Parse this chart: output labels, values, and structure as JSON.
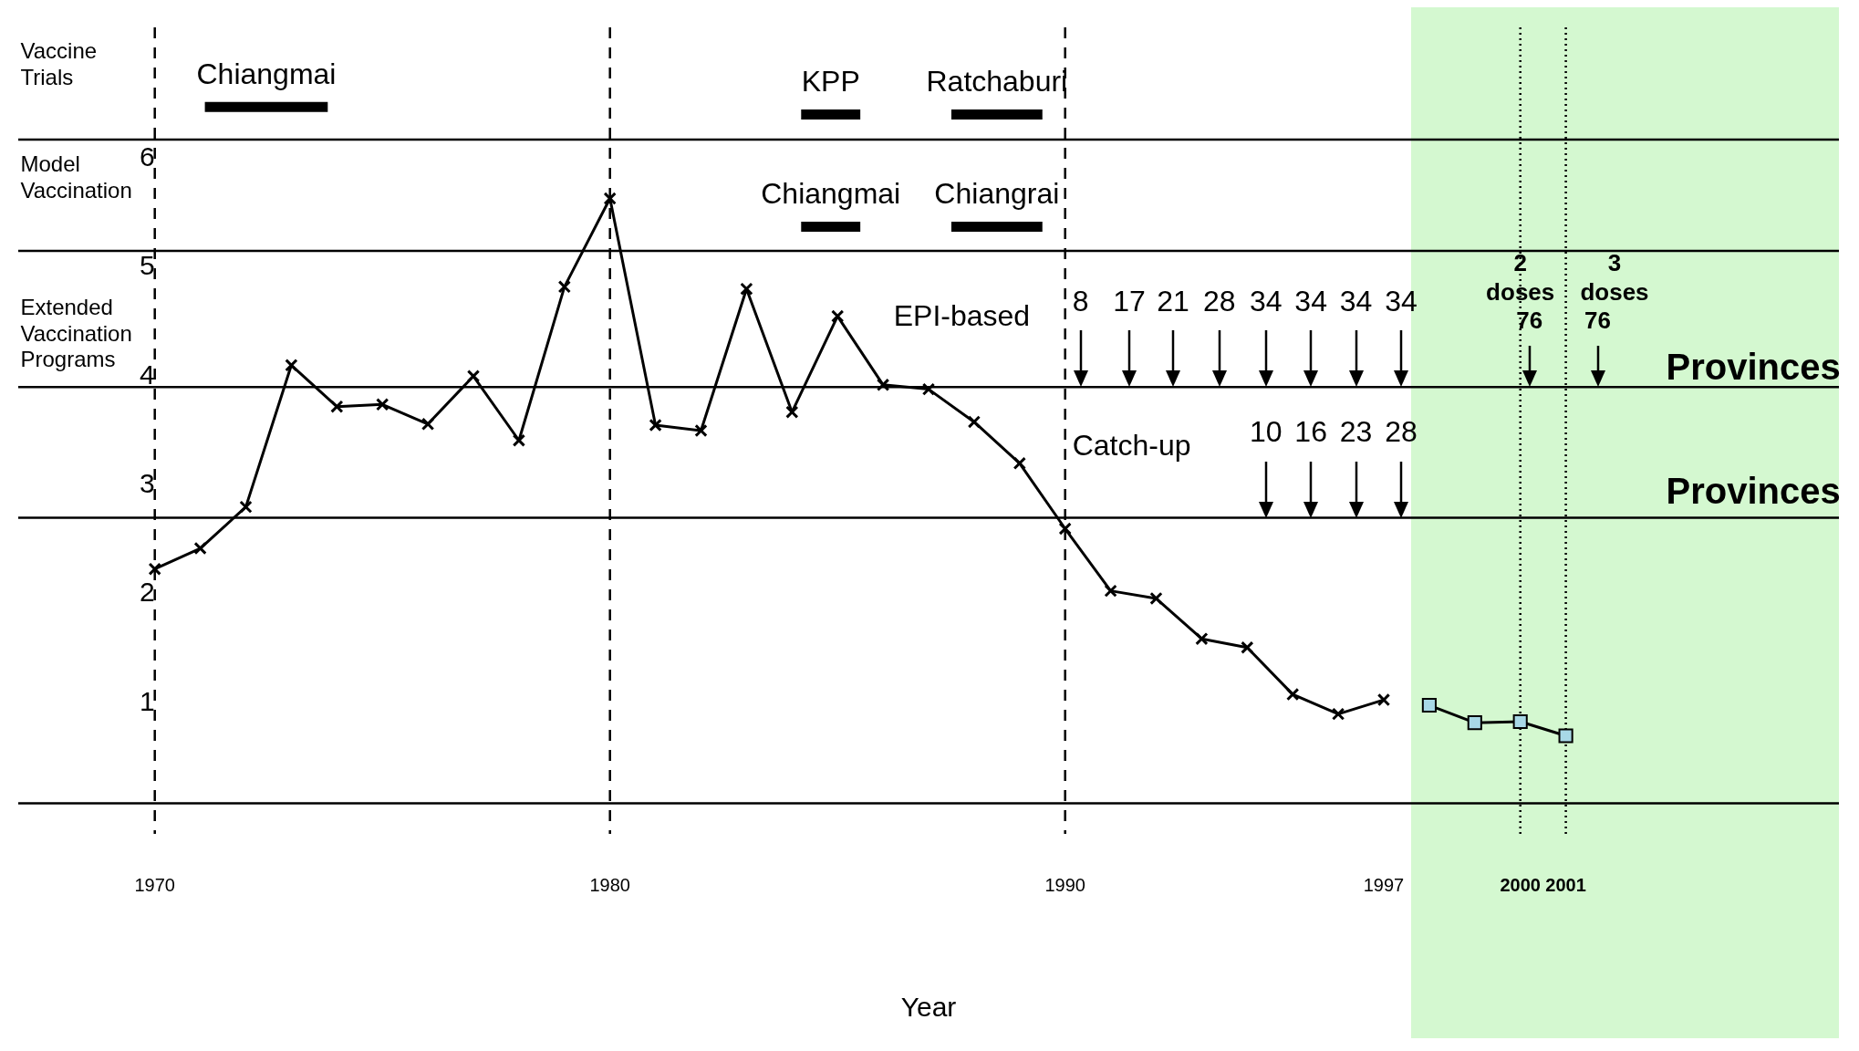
{
  "chart_data": {
    "type": "line",
    "xlabel": "Year",
    "xlim": [
      1967,
      2007
    ],
    "ylim": [
      -0.2,
      7.2
    ],
    "xticks": [
      1970,
      1980,
      1990,
      1997,
      2000,
      2001
    ],
    "yticks": [
      1,
      2,
      3,
      4,
      5,
      6
    ],
    "grid": false,
    "legend": false,
    "series": [
      {
        "color": "#000000",
        "marker": "cross",
        "x": [
          1970,
          1971,
          1972,
          1973,
          1974,
          1975,
          1976,
          1977,
          1978,
          1979,
          1980,
          1981,
          1982,
          1983,
          1984,
          1985,
          1986,
          1987,
          1988,
          1989,
          1990,
          1991,
          1992,
          1993,
          1994,
          1995,
          1996,
          1997
        ],
        "values": [
          2.23,
          2.42,
          2.8,
          4.1,
          3.72,
          3.74,
          3.56,
          4.0,
          3.41,
          4.82,
          5.63,
          3.55,
          3.5,
          4.8,
          3.67,
          4.55,
          3.92,
          3.88,
          3.58,
          3.2,
          2.6,
          2.03,
          1.96,
          1.59,
          1.51,
          1.08,
          0.9,
          1.03
        ]
      },
      {
        "color": "#a8d8e6",
        "marker": "square",
        "x": [
          1998,
          1999,
          2000,
          2001
        ],
        "values": [
          0.98,
          0.82,
          0.83,
          0.7
        ]
      },
      {
        "name": "Chiangmai",
        "color": "#000000",
        "marker": "none",
        "x": [
          1971.1,
          1973.8
        ],
        "values": [
          6.47,
          6.47
        ]
      },
      {
        "name": "KPP",
        "color": "#000000",
        "marker": "none",
        "x": [
          1984.2,
          1985.5
        ],
        "values": [
          6.4,
          6.4
        ]
      },
      {
        "name": "Ratchaburi",
        "color": "#000000",
        "marker": "none",
        "x": [
          1987.5,
          1989.5
        ],
        "values": [
          6.4,
          6.4
        ]
      },
      {
        "name": "Chiangmai",
        "color": "#000000",
        "marker": "none",
        "x": [
          1984.2,
          1985.5
        ],
        "values": [
          5.37,
          5.37
        ]
      },
      {
        "name": "Chiangrai",
        "color": "#000000",
        "marker": "none",
        "x": [
          1987.5,
          1989.5
        ],
        "values": [
          5.37,
          5.37
        ]
      }
    ],
    "ref_lines": [
      {
        "axis": "y",
        "value": 6.17,
        "color": "#000000",
        "line_style": "solid"
      },
      {
        "axis": "y",
        "value": 5.15,
        "color": "#000000",
        "line_style": "solid"
      },
      {
        "axis": "y",
        "value": 3.9,
        "color": "#000000",
        "line_style": "solid"
      },
      {
        "axis": "y",
        "value": 2.7,
        "color": "#000000",
        "line_style": "solid"
      },
      {
        "axis": "y",
        "value": 0.08,
        "color": "#000000",
        "line_style": "solid"
      },
      {
        "axis": "x",
        "value": 1970,
        "color": "#000000",
        "line_style": "dashed"
      },
      {
        "axis": "x",
        "value": 1980,
        "color": "#000000",
        "line_style": "dashed"
      },
      {
        "axis": "x",
        "value": 1990,
        "color": "#000000",
        "line_style": "dashed"
      },
      {
        "axis": "x",
        "value": 2000,
        "color": "#000000",
        "line_style": "dotted"
      },
      {
        "axis": "x",
        "value": 2001,
        "color": "#000000",
        "line_style": "dotted"
      }
    ],
    "bands": [
      {
        "axis": "x",
        "from": 1997.6,
        "to": 2007,
        "color": "#d4f8d0"
      }
    ],
    "annotations": [
      "Vaccine\nTrials",
      "Model\nVaccination",
      "Extended\nVaccination\nPrograms",
      "EPI-based",
      {
        "text": "8",
        "x": 1990.34,
        "y": 3.9
      },
      {
        "text": "17",
        "x": 1991.41,
        "y": 3.9
      },
      {
        "text": "21",
        "x": 1992.37,
        "y": 3.9
      },
      {
        "text": "28",
        "x": 1993.39,
        "y": 3.9
      },
      {
        "text": "34",
        "x": 1994.41,
        "y": 3.9
      },
      {
        "text": "34",
        "x": 1995.4,
        "y": 3.9
      },
      {
        "text": "34",
        "x": 1996.39,
        "y": 3.9
      },
      {
        "text": "34",
        "x": 1997.38,
        "y": 3.9
      },
      "Catch-up",
      {
        "text": "10",
        "x": 1994.41,
        "y": 2.7
      },
      {
        "text": "16",
        "x": 1995.4,
        "y": 2.7
      },
      {
        "text": "23",
        "x": 1996.39,
        "y": 2.7
      },
      {
        "text": "28",
        "x": 1997.38,
        "y": 2.7
      },
      "2\ndoses",
      "3\ndoses",
      {
        "text": "76",
        "x": 2000.2,
        "y": 3.9
      },
      {
        "text": "76",
        "x": 2001.7,
        "y": 3.9
      },
      "Provinces",
      "Provinces"
    ]
  }
}
